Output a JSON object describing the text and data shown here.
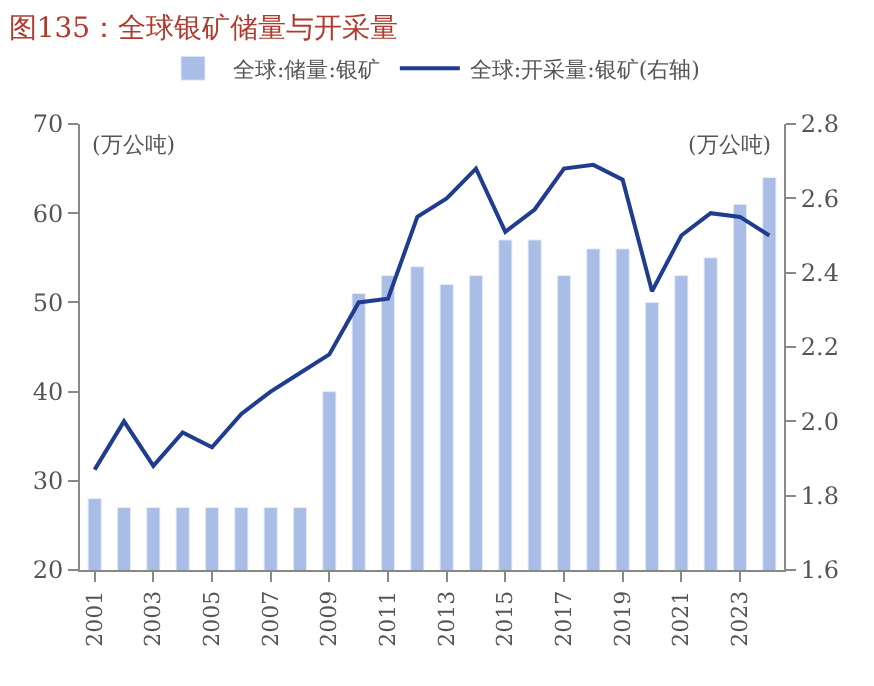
{
  "chart_data": {
    "type": "bar",
    "title": "图135：全球银矿储量与开采量",
    "categories": [
      "2001",
      null,
      "2003",
      null,
      "2005",
      null,
      "2007",
      null,
      "2009",
      null,
      "2011",
      null,
      "2013",
      null,
      "2015",
      null,
      "2017",
      null,
      "2019",
      null,
      "2021",
      null,
      "2023",
      null
    ],
    "series": [
      {
        "name": "全球:储量:银矿",
        "color": "#a9bde6",
        "values": [
          28,
          27,
          27,
          27,
          27,
          27,
          27,
          27,
          40,
          51,
          53,
          54,
          52,
          53,
          57,
          57,
          53,
          56,
          56,
          50,
          53,
          55,
          61,
          64
        ]
      },
      {
        "name": "全球:开采量:银矿(右轴)",
        "color": "#1f3c8f",
        "type": "line",
        "axis": "y2",
        "values": [
          1.87,
          2.0,
          1.88,
          1.97,
          1.93,
          2.02,
          2.08,
          2.13,
          2.18,
          2.32,
          2.33,
          2.55,
          2.6,
          2.68,
          2.51,
          2.57,
          2.68,
          2.69,
          2.65,
          2.35,
          2.5,
          2.56,
          2.55,
          2.5
        ]
      }
    ],
    "ylim": [
      20,
      70
    ],
    "yticks": [
      20,
      30,
      40,
      50,
      60,
      70
    ],
    "y2lim": [
      1.6,
      2.8
    ],
    "y2ticks": [
      {
        "value": 1.6,
        "label": "1.6"
      },
      {
        "value": 1.8,
        "label": "1.8"
      },
      {
        "value": 2.0,
        "label": "2.0"
      },
      {
        "value": 2.2,
        "label": "2.2"
      },
      {
        "value": 2.4,
        "label": "2.4"
      },
      {
        "value": 2.6,
        "label": "2.6"
      },
      {
        "value": 2.8,
        "label": "2.8"
      }
    ],
    "annotations": [
      "(万公吨)",
      "(万公吨)"
    ],
    "legend": "top",
    "marker": "none",
    "line_style": "solid"
  }
}
